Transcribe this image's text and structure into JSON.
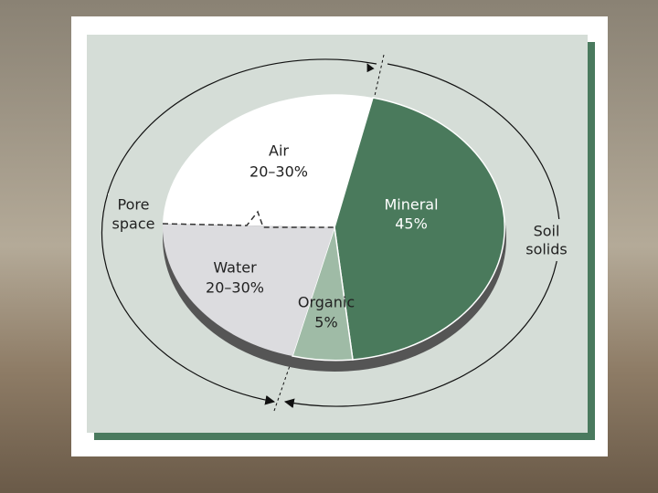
{
  "components": {
    "air": {
      "name": "Air",
      "share": "20–30%"
    },
    "water": {
      "name": "Water",
      "share": "20–30%"
    },
    "mineral": {
      "name": "Mineral",
      "share": "45%"
    },
    "organic": {
      "name": "Organic",
      "share": "5%"
    }
  },
  "groups": {
    "pore_space": {
      "line1": "Pore",
      "line2": "space"
    },
    "soil_solids": {
      "line1": "Soil",
      "line2": "solids"
    }
  }
}
